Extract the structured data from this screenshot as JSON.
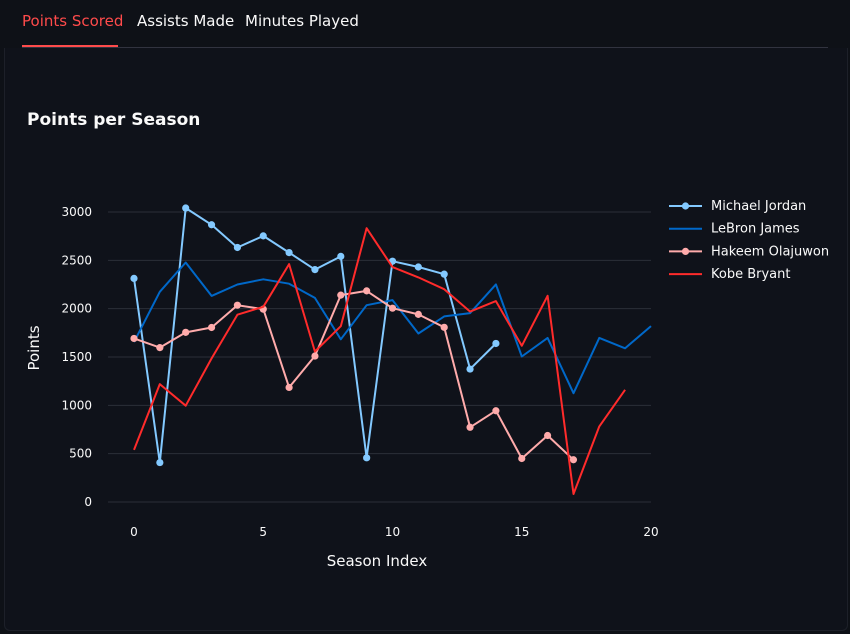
{
  "tabs": [
    {
      "label": "Points Scored",
      "active": true
    },
    {
      "label": "Assists Made",
      "active": false
    },
    {
      "label": "Minutes Played",
      "active": false
    }
  ],
  "colors": {
    "accent": "#ff4b4b",
    "background": "#0e1117",
    "grid": "#2b2f38"
  },
  "chart_data": {
    "type": "line",
    "title": "Points per Season",
    "xlabel": "Season Index",
    "ylabel": "Points",
    "xlim": [
      -1,
      20
    ],
    "ylim": [
      -50,
      3200
    ],
    "xticks": [
      0,
      5,
      10,
      15,
      20
    ],
    "yticks": [
      0,
      500,
      1000,
      1500,
      2000,
      2500,
      3000
    ],
    "grid": "horizontal",
    "legend": "right",
    "series": [
      {
        "name": "Michael Jordan",
        "color": "#83c9ff",
        "markers": true,
        "x": [
          0,
          1,
          2,
          3,
          4,
          5,
          6,
          7,
          8,
          9,
          10,
          11,
          12,
          13,
          14
        ],
        "y": [
          2313,
          408,
          3041,
          2868,
          2633,
          2753,
          2580,
          2404,
          2541,
          457,
          2491,
          2431,
          2357,
          1375,
          1640
        ]
      },
      {
        "name": "LeBron James",
        "color": "#0068c9",
        "markers": false,
        "x": [
          0,
          1,
          2,
          3,
          4,
          5,
          6,
          7,
          8,
          9,
          10,
          11,
          12,
          13,
          14,
          15,
          16,
          17,
          18,
          19,
          20
        ],
        "y": [
          1654,
          2175,
          2478,
          2132,
          2250,
          2304,
          2258,
          2111,
          1683,
          2036,
          2089,
          1743,
          1920,
          1954,
          2251,
          1505,
          1698,
          1126,
          1698,
          1590,
          1820
        ]
      },
      {
        "name": "Hakeem Olajuwon",
        "color": "#ffabab",
        "markers": true,
        "x": [
          0,
          1,
          2,
          3,
          4,
          5,
          6,
          7,
          8,
          9,
          10,
          11,
          12,
          13,
          14,
          15,
          16,
          17
        ],
        "y": [
          1692,
          1597,
          1755,
          1805,
          2036,
          1995,
          1185,
          1510,
          2140,
          2184,
          2005,
          1941,
          1807,
          773,
          944,
          450,
          688,
          437
        ]
      },
      {
        "name": "Kobe Bryant",
        "color": "#ff2b2b",
        "markers": false,
        "x": [
          0,
          1,
          2,
          3,
          4,
          5,
          6,
          7,
          8,
          9,
          10,
          11,
          12,
          13,
          14,
          15,
          16,
          17,
          18,
          19
        ],
        "y": [
          539,
          1220,
          996,
          1485,
          1938,
          2019,
          2461,
          1557,
          1819,
          2832,
          2430,
          2323,
          2201,
          1970,
          2078,
          1616,
          2133,
          83,
          782,
          1161
        ]
      }
    ]
  }
}
